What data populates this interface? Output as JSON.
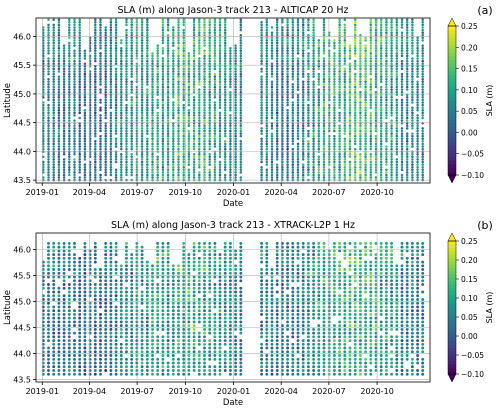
{
  "chart_data": [
    {
      "type": "scatter",
      "panel_label": "(a)",
      "title": "SLA (m) along Jason-3 track 213 - ALTICAP 20 Hz",
      "xlabel": "Date",
      "ylabel": "Latitude",
      "x_range": [
        "2018-12-20",
        "2021-01-10"
      ],
      "ylim": [
        43.45,
        46.32
      ],
      "x_ticks": [
        "2019-01",
        "2019-04",
        "2019-07",
        "2019-10",
        "2020-01",
        "2020-04",
        "2020-07",
        "2020-10"
      ],
      "y_ticks": [
        43.5,
        44.0,
        44.5,
        45.0,
        45.5,
        46.0
      ],
      "y_tick_labels": [
        "43.5",
        "44.0",
        "44.5",
        "45.0",
        "45.5",
        "46.0"
      ],
      "lat_extent": [
        43.5,
        46.3
      ],
      "grid": true,
      "series": [
        {
          "mean_sla": [
            0.05,
            0.04,
            0.06,
            0.03,
            0.02,
            0.05,
            0.07,
            0.08,
            0.1,
            0.09,
            0.12,
            0.11,
            0.1,
            0.08,
            0.05,
            0.04,
            0.06,
            0.03,
            0.05,
            0.08,
            0.1,
            0.12,
            0.14,
            0.13,
            0.11,
            0.09,
            0.06,
            0.05
          ]
        }
      ],
      "colorbar": {
        "label": "SLA (m)",
        "vmin": -0.1,
        "vmax": 0.25,
        "ticks": [
          -0.1,
          -0.05,
          0.0,
          0.05,
          0.1,
          0.15,
          0.2,
          0.25
        ],
        "tick_labels": [
          "−0.10",
          "−0.05",
          "0.00",
          "0.05",
          "0.10",
          "0.15",
          "0.20",
          "0.25"
        ],
        "colormap": "viridis",
        "extend": "both"
      }
    },
    {
      "type": "scatter",
      "panel_label": "(b)",
      "title": "SLA (m) along Jason-3 track 213 - XTRACK-L2P 1 Hz",
      "xlabel": "Date",
      "ylabel": "Latitude",
      "x_range": [
        "2018-12-20",
        "2021-01-10"
      ],
      "ylim": [
        43.45,
        46.32
      ],
      "x_ticks": [
        "2019-01",
        "2019-04",
        "2019-07",
        "2019-10",
        "2020-01",
        "2020-04",
        "2020-07",
        "2020-10"
      ],
      "y_ticks": [
        43.5,
        44.0,
        44.5,
        45.0,
        45.5,
        46.0
      ],
      "y_tick_labels": [
        "43.5",
        "44.0",
        "44.5",
        "45.0",
        "45.5",
        "46.0"
      ],
      "lat_extent": [
        43.6,
        46.15
      ],
      "grid": true,
      "series": [
        {
          "mean_sla": [
            0.04,
            0.03,
            0.05,
            0.02,
            0.02,
            0.04,
            0.06,
            0.07,
            0.09,
            0.08,
            0.1,
            0.1,
            0.09,
            0.07,
            0.04,
            0.03,
            0.05,
            0.03,
            0.04,
            0.07,
            0.09,
            0.11,
            0.12,
            0.12,
            0.1,
            0.08,
            0.05,
            0.04
          ]
        }
      ],
      "colorbar": {
        "label": "SLA (m)",
        "vmin": -0.1,
        "vmax": 0.25,
        "ticks": [
          -0.1,
          -0.05,
          0.0,
          0.05,
          0.1,
          0.15,
          0.2,
          0.25
        ],
        "tick_labels": [
          "−0.10",
          "−0.05",
          "0.00",
          "0.05",
          "0.10",
          "0.15",
          "0.20",
          "0.25"
        ],
        "colormap": "viridis",
        "extend": "both"
      }
    }
  ]
}
